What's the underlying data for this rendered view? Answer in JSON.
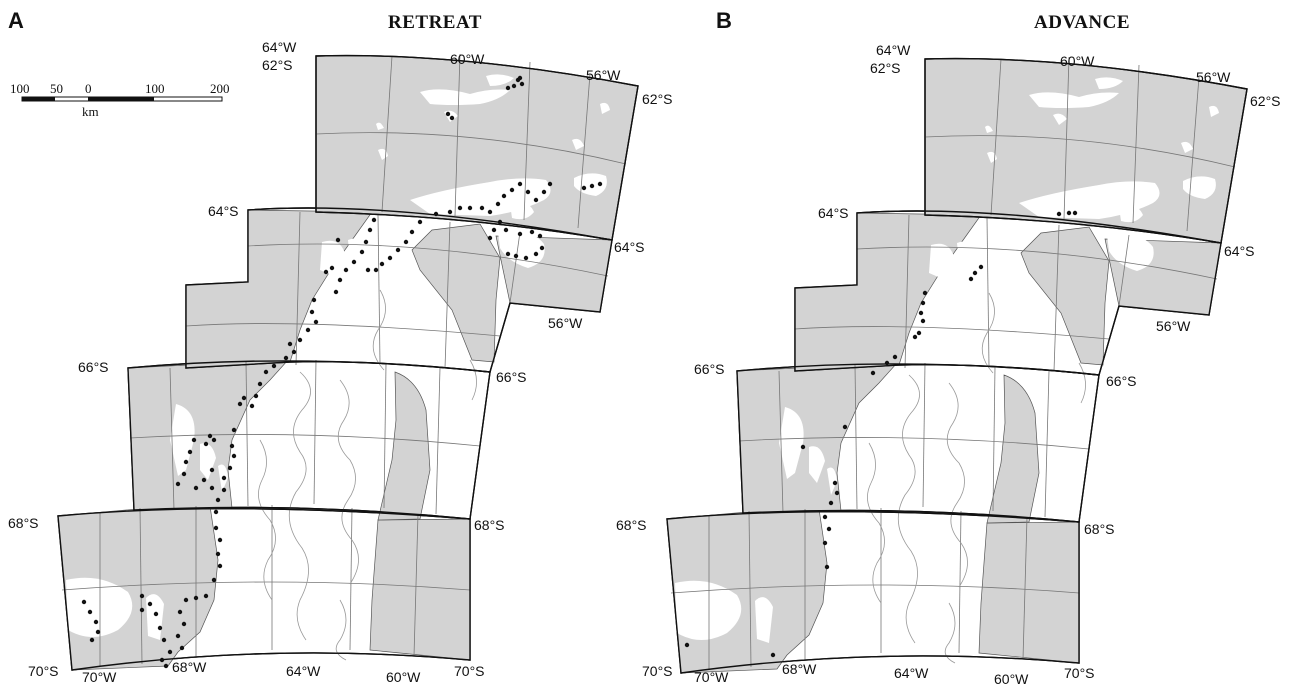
{
  "figure": {
    "panels": [
      {
        "letter": "A",
        "title": "RETREAT",
        "labels": {
          "w64_top": "64°W",
          "s62_left": "62°S",
          "w60_top": "60°W",
          "w56_top": "56°W",
          "s62_right": "62°S",
          "s64_left": "64°S",
          "s64_right": "64°S",
          "w56_mid": "56°W",
          "s66_left": "66°S",
          "s66_right": "66°S",
          "s68_left": "68°S",
          "s68_right": "68°S",
          "s70_left": "70°S",
          "w70_bottom": "70°W",
          "w68_bottom": "68°W",
          "w64_bottom": "64°W",
          "w60_bottom": "60°W",
          "s70_right": "70°S"
        }
      },
      {
        "letter": "B",
        "title": "ADVANCE",
        "labels": {
          "w64_top": "64°W",
          "s62_left": "62°S",
          "w60_top": "60°W",
          "w56_top": "56°W",
          "s62_right": "62°S",
          "s64_left": "64°S",
          "s64_right": "64°S",
          "w56_mid": "56°W",
          "s66_left": "66°S",
          "s66_right": "66°S",
          "s68_left": "68°S",
          "s68_right": "68°S",
          "s70_left": "70°S",
          "w70_bottom": "70°W",
          "w68_bottom": "68°W",
          "w64_bottom": "64°W",
          "w60_bottom": "60°W",
          "s70_right": "70°S"
        }
      }
    ],
    "scale_bar": {
      "ticks": [
        "100",
        "50",
        "0",
        "100",
        "200"
      ],
      "unit": "km"
    },
    "colors": {
      "land": "#d3d3d3",
      "sea": "#ffffff",
      "glacier_front_point": "#111111"
    }
  }
}
